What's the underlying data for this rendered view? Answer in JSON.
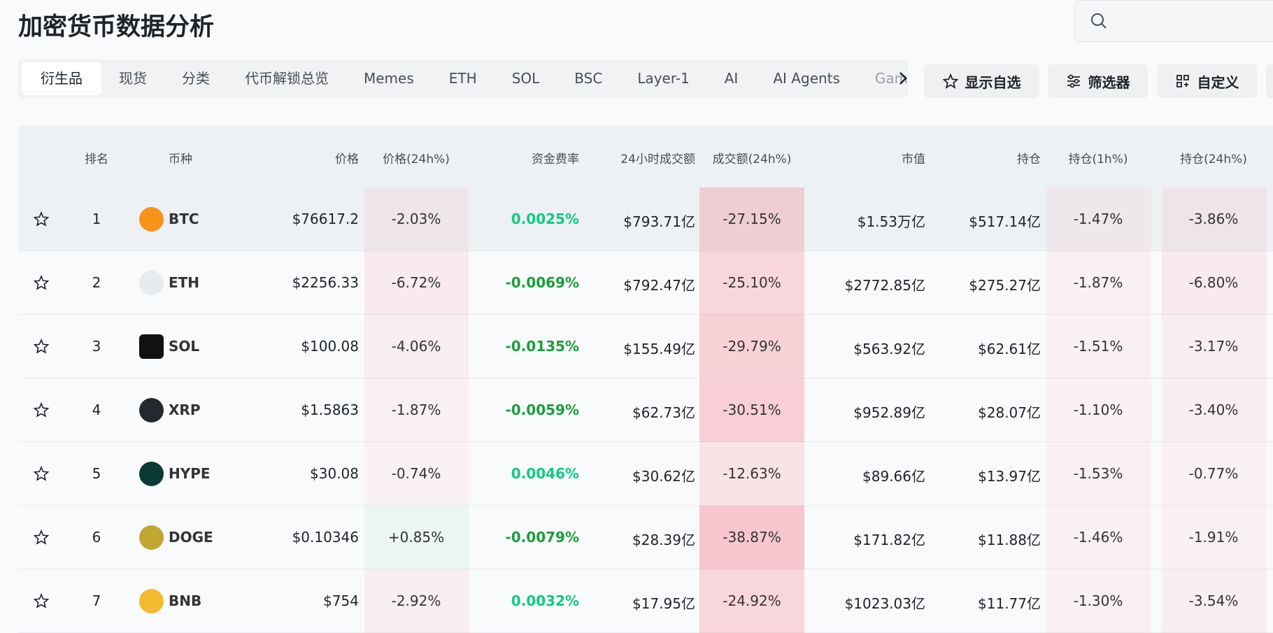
{
  "header": {
    "title": "加密货币数据分析"
  },
  "tabs": [
    "衍生品",
    "现货",
    "分类",
    "代币解锁总览",
    "Memes",
    "ETH",
    "SOL",
    "BSC",
    "Layer-1",
    "AI",
    "AI Agents",
    "Gam"
  ],
  "buttons": [
    "显示自选",
    "筛选器",
    "自定义"
  ],
  "table": {
    "headers": [
      "排名",
      "币种",
      "价格",
      "价格(24h%)",
      "资金费率",
      "24小时成交额",
      "成交额(24h%)",
      "市值",
      "持仓",
      "持仓(1h%)",
      "持仓(24h%)"
    ],
    "rows": [
      [
        "1",
        "BTC",
        "$76617.2",
        "-2.03%",
        "0.0025%",
        "$793.71亿",
        "-27.15%",
        "$1.53万亿",
        "$517.14亿",
        "-1.47%",
        "-3.86%"
      ],
      [
        "2",
        "ETH",
        "$2256.33",
        "-6.72%",
        "-0.0069%",
        "$792.47亿",
        "-25.10%",
        "$2772.85亿",
        "$275.27亿",
        "-1.87%",
        "-6.80%"
      ],
      [
        "3",
        "SOL",
        "$100.08",
        "-4.06%",
        "-0.0135%",
        "$155.49亿",
        "-29.79%",
        "$563.92亿",
        "$62.61亿",
        "-1.51%",
        "-3.17%"
      ],
      [
        "4",
        "XRP",
        "$1.5863",
        "-1.87%",
        "-0.0059%",
        "$62.73亿",
        "-30.51%",
        "$952.89亿",
        "$28.07亿",
        "-1.10%",
        "-3.40%"
      ],
      [
        "5",
        "HYPE",
        "$30.08",
        "-0.74%",
        "0.0046%",
        "$30.62亿",
        "-12.63%",
        "$89.66亿",
        "$13.97亿",
        "-1.53%",
        "-0.77%"
      ],
      [
        "6",
        "DOGE",
        "$0.10346",
        "+0.85%",
        "-0.0079%",
        "$28.39亿",
        "-38.87%",
        "$171.82亿",
        "$11.88亿",
        "-1.46%",
        "-1.91%"
      ],
      [
        "7",
        "BNB",
        "$754",
        "-2.92%",
        "0.0032%",
        "$17.95亿",
        "-24.92%",
        "$1023.03亿",
        "$11.77亿",
        "-1.30%",
        "-3.54%"
      ]
    ]
  }
}
